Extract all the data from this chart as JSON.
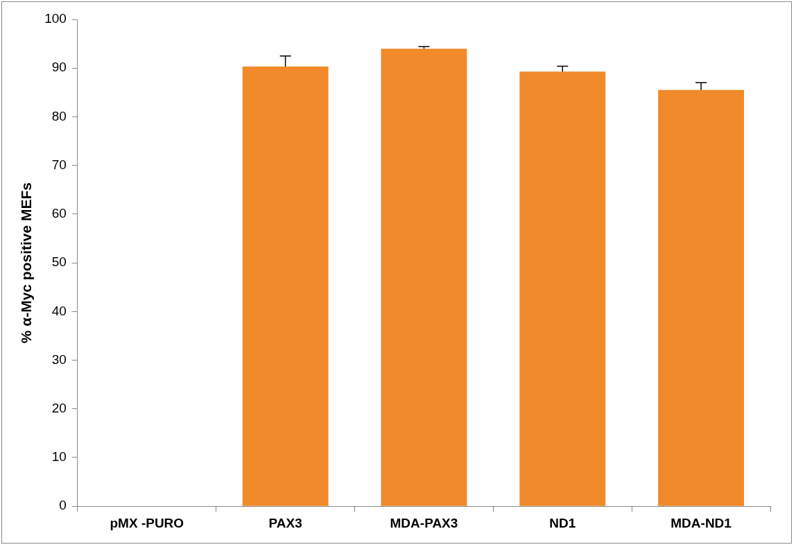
{
  "chart_data": {
    "type": "bar",
    "ylabel": "% α-Myc positive MEFs",
    "categories": [
      "pMX -PURO",
      "PAX3",
      "MDA-PAX3",
      "ND1",
      "MDA-ND1"
    ],
    "values": [
      0,
      90.3,
      94.0,
      89.3,
      85.5
    ],
    "errors": [
      null,
      [
        90.3,
        92.5
      ],
      [
        94.0,
        94.4
      ],
      [
        89.3,
        90.4
      ],
      [
        85.5,
        87.0
      ]
    ],
    "color": "#f08a2a",
    "ylim": [
      0,
      100
    ],
    "yticks": [
      0,
      10,
      20,
      30,
      40,
      50,
      60,
      70,
      80,
      90,
      100
    ],
    "grid": false,
    "legend": false
  }
}
